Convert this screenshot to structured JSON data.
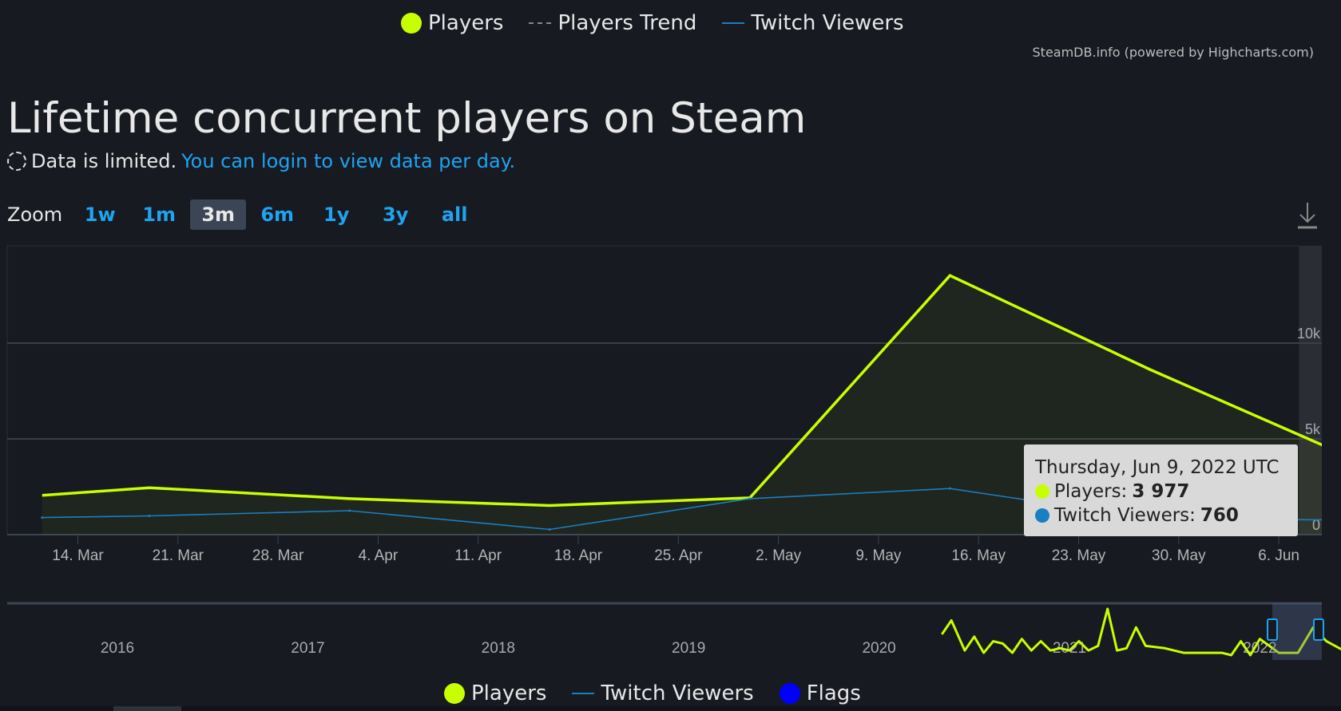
{
  "legend_top": [
    {
      "label": "Players",
      "symbol": "dot",
      "color": "#c8ff00"
    },
    {
      "label": "Players Trend",
      "symbol": "dash",
      "color": "#888888"
    },
    {
      "label": "Twitch Viewers",
      "symbol": "line",
      "color": "#1a7fc1"
    }
  ],
  "credits": "SteamDB.info (powered by Highcharts.com)",
  "title": "Lifetime concurrent players on Steam",
  "subtitle": {
    "text": "Data is limited.",
    "link": "You can login to view data per day."
  },
  "zoom": {
    "label": "Zoom",
    "buttons": [
      "1w",
      "1m",
      "3m",
      "6m",
      "1y",
      "3y",
      "all"
    ],
    "active": "3m"
  },
  "tooltip": {
    "date": "Thursday, Jun 9, 2022 UTC",
    "players_label": "Players:",
    "players_value": "3 977",
    "twitch_label": "Twitch Viewers:",
    "twitch_value": "760"
  },
  "legend_bottom": [
    {
      "label": "Players",
      "symbol": "dot",
      "color": "#c8ff00"
    },
    {
      "label": "Twitch Viewers",
      "symbol": "line",
      "color": "#1a7fc1"
    },
    {
      "label": "Flags",
      "symbol": "dot",
      "color": "#0000ff"
    }
  ],
  "chart_data": {
    "type": "line",
    "title": "Lifetime concurrent players on Steam",
    "x_ticks": [
      "14. Mar",
      "21. Mar",
      "28. Mar",
      "4. Apr",
      "11. Apr",
      "18. Apr",
      "25. Apr",
      "2. May",
      "9. May",
      "16. May",
      "23. May",
      "30. May",
      "6. Jun"
    ],
    "y_ticks": [
      "0",
      "5k",
      "10k"
    ],
    "ylim": [
      0,
      15000
    ],
    "x_days": [
      -2.5,
      5,
      19,
      33,
      47,
      61,
      75,
      89.2
    ],
    "series": [
      {
        "name": "Players",
        "color": "#c8ff00",
        "values": [
          2050,
          2450,
          1880,
          1520,
          1920,
          13530,
          8620,
          3977
        ]
      },
      {
        "name": "Twitch Viewers",
        "color": "#1a7fc1",
        "values": [
          890,
          980,
          1250,
          270,
          1880,
          2410,
          850,
          760
        ]
      }
    ],
    "navigator": {
      "year_ticks": [
        "2016",
        "2017",
        "2018",
        "2019",
        "2020",
        "2021",
        "2022"
      ],
      "players_years": [
        2020.33,
        2020.38,
        2020.45,
        2020.5,
        2020.55,
        2020.6,
        2020.65,
        2020.7,
        2020.75,
        2020.8,
        2020.85,
        2020.9,
        2020.95,
        2021.0,
        2021.05,
        2021.1,
        2021.15,
        2021.2,
        2021.25,
        2021.3,
        2021.35,
        2021.4,
        2021.5,
        2021.6,
        2021.7,
        2021.8,
        2021.85,
        2021.9,
        2021.95,
        2022.0,
        2022.1,
        2022.2,
        2022.28,
        2022.35,
        2022.44
      ],
      "players_values": [
        0.45,
        0.75,
        0.1,
        0.4,
        0.05,
        0.3,
        0.25,
        0.05,
        0.35,
        0.1,
        0.3,
        0.1,
        0.15,
        0.1,
        0.3,
        0.1,
        0.2,
        1.0,
        0.1,
        0.15,
        0.6,
        0.2,
        0.15,
        0.05,
        0.05,
        0.05,
        0.0,
        0.3,
        0.0,
        0.35,
        0.05,
        0.05,
        0.6,
        0.3,
        0.1
      ]
    }
  }
}
